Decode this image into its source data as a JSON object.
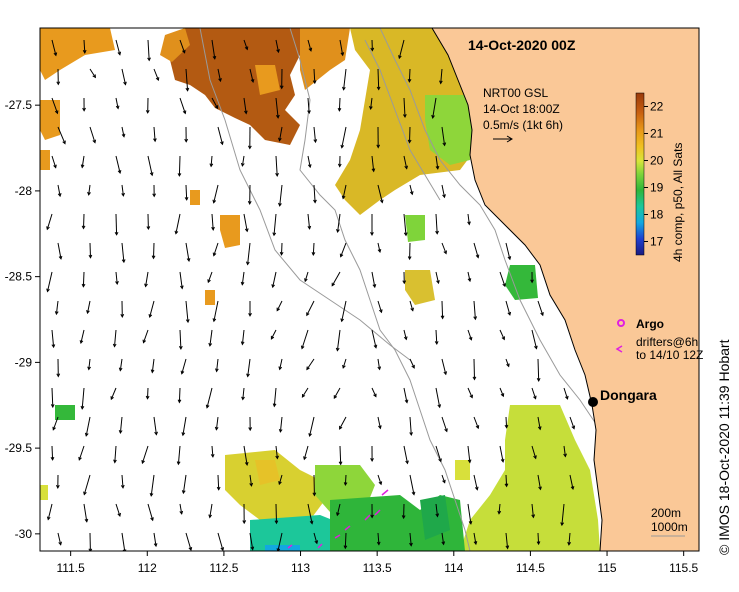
{
  "map": {
    "title": "14-Oct-2020 00Z",
    "current_info": {
      "line1": "NRT00 GSL",
      "line2": "14-Oct 18:00Z",
      "line3": "0.5m/s (1kt 6h)"
    },
    "colorbar": {
      "label": "4h comp, p50, All Sats",
      "ticks": [
        "17",
        "18",
        "19",
        "20",
        "21",
        "22"
      ],
      "min": 16.5,
      "max": 22.5,
      "colors": [
        "#1a1a80",
        "#1f3fd0",
        "#12a8e0",
        "#1cc79a",
        "#2fb53a",
        "#7fd43a",
        "#d8e53b",
        "#f0c020",
        "#e89818",
        "#c86010",
        "#9a3a0a"
      ]
    },
    "legend": {
      "argo_label": "Argo",
      "drifters_line1": "drifters@6h",
      "drifters_line2": "to 14/10 12Z"
    },
    "place": {
      "name": "Dongara"
    },
    "scale": {
      "line1": "200m",
      "line2": "1000m"
    },
    "credit": "© IMOS 18-Oct-2020 11:39 Hobart",
    "x_ticks": [
      "111.5",
      "112",
      "112.5",
      "113",
      "113.5",
      "114",
      "114.5",
      "115",
      "115.5"
    ],
    "y_ticks": [
      "-27.5",
      "-28",
      "-28.5",
      "-29",
      "-29.5",
      "-30"
    ],
    "colors": {
      "land": "#fac897",
      "ocean": "#ffffff",
      "coast": "#000000",
      "argo": "#e020e0",
      "drifter": "#e020e0"
    },
    "lon_range": [
      111.3,
      115.6
    ],
    "lat_range": [
      -30.1,
      -27.05
    ]
  }
}
